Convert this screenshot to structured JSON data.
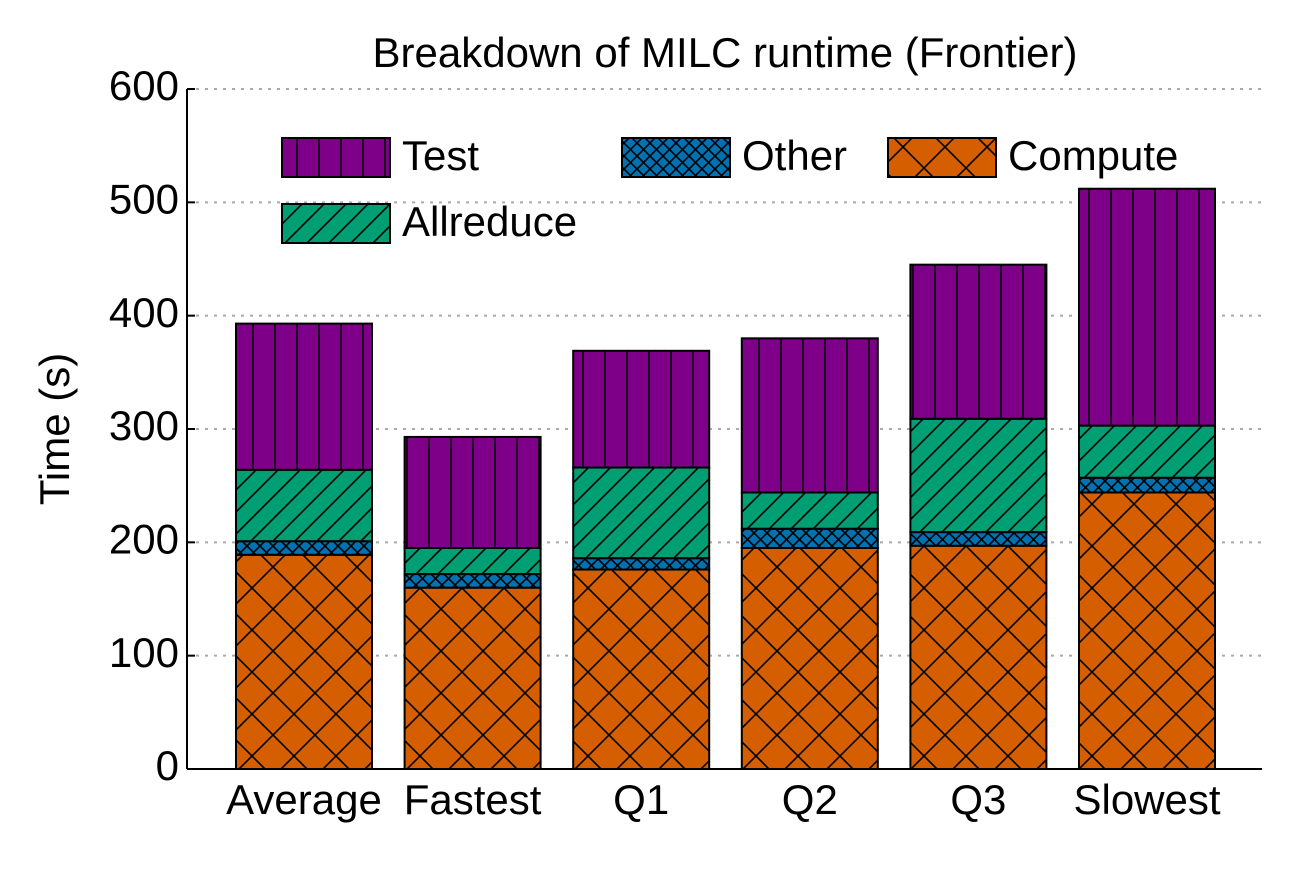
{
  "chart_data": {
    "type": "stacked-bar",
    "title": "Breakdown of MILC runtime (Frontier)",
    "y_label": "Time (s)",
    "categories": [
      "Average",
      "Fastest",
      "Q1",
      "Q2",
      "Q3",
      "Slowest"
    ],
    "series": [
      {
        "name": "Compute",
        "color": "#d55e00",
        "hatch": "x",
        "values": [
          189,
          160,
          176,
          195,
          197,
          244
        ]
      },
      {
        "name": "Other",
        "color": "#0072b2",
        "hatch": "xx",
        "values": [
          12,
          12,
          10,
          17,
          12,
          13
        ]
      },
      {
        "name": "Allreduce",
        "color": "#009e73",
        "hatch": "/",
        "values": [
          63,
          23,
          80,
          32,
          100,
          46
        ]
      },
      {
        "name": "Test",
        "color": "#7e0088",
        "hatch": "|",
        "values": [
          129,
          98,
          103,
          136,
          136,
          209
        ]
      }
    ],
    "ylim": [
      0,
      600
    ],
    "yticks": [
      0,
      100,
      200,
      300,
      400,
      500,
      600
    ],
    "grid": true
  }
}
